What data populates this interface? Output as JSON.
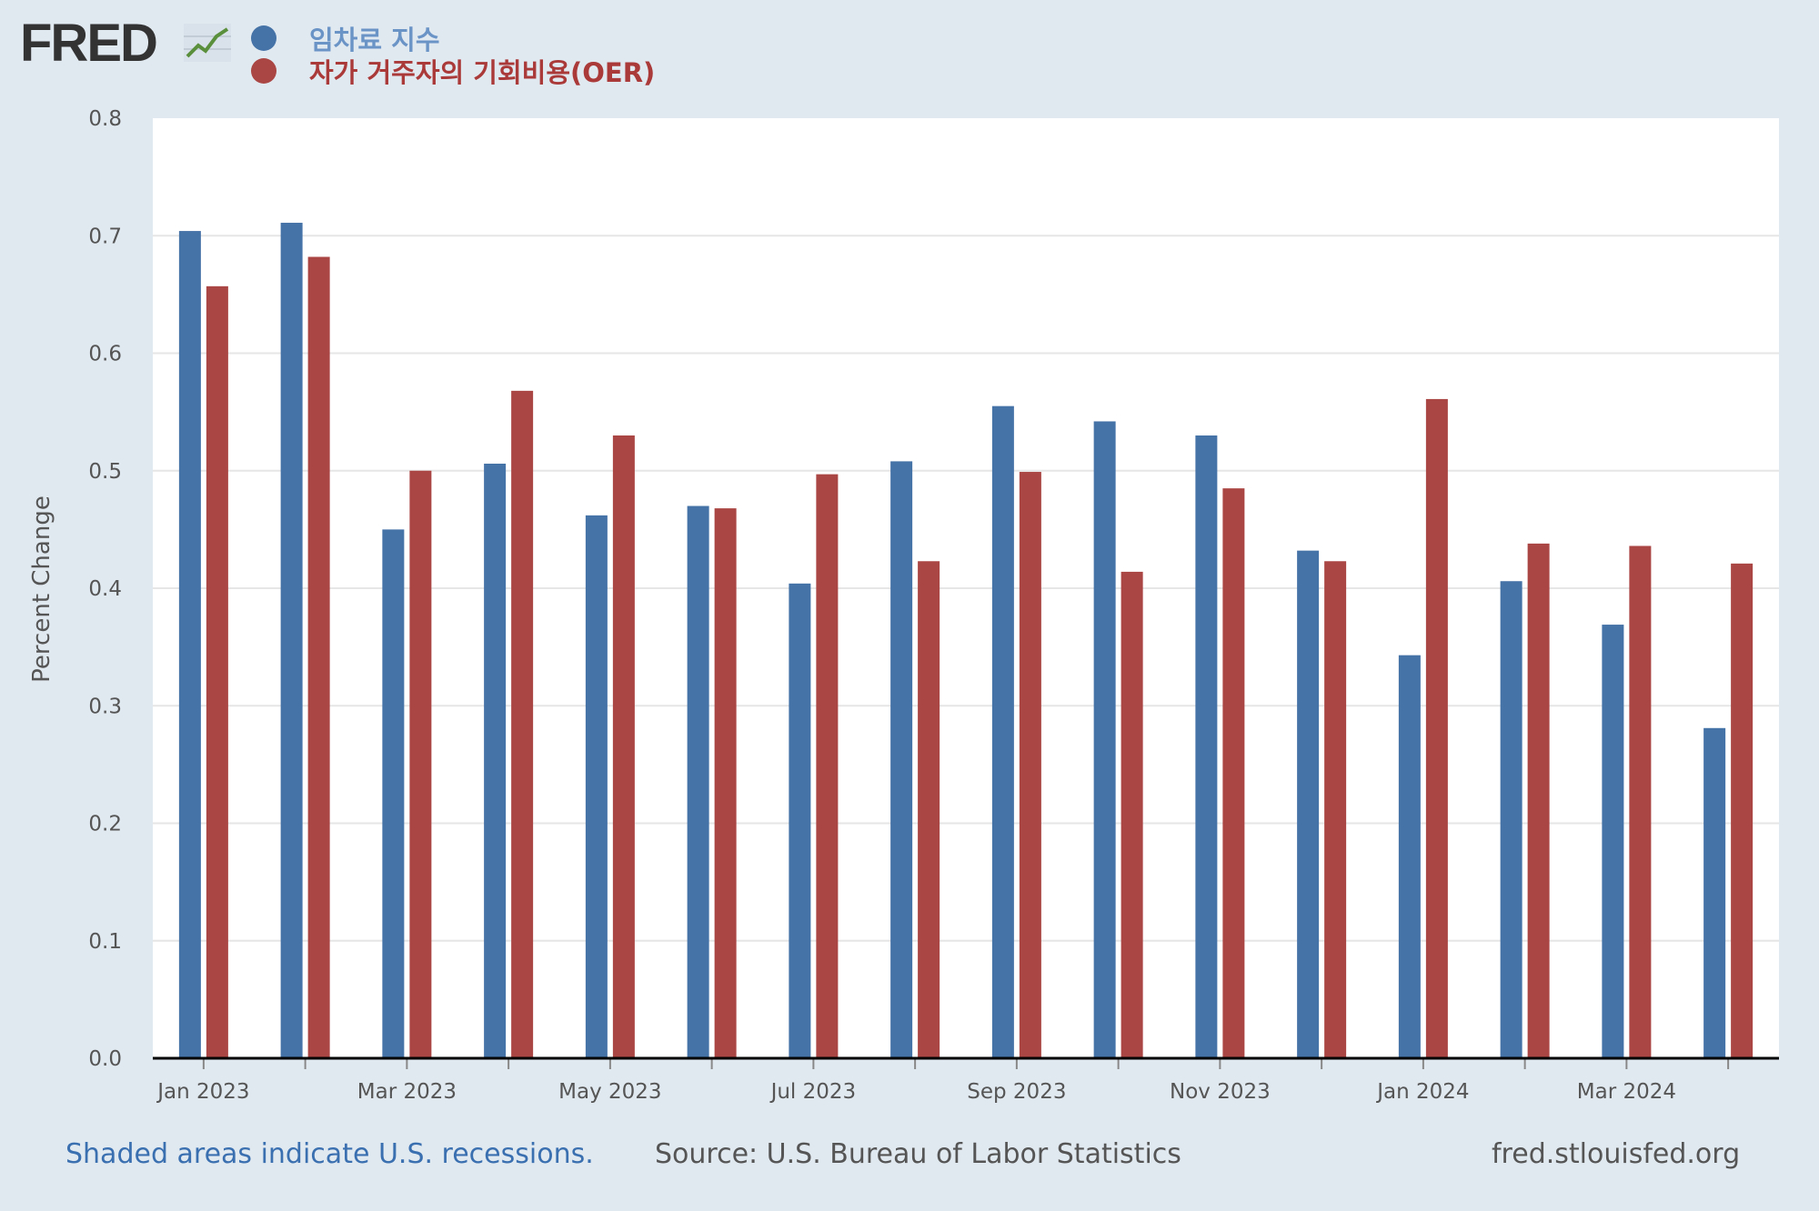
{
  "brand": {
    "name": "FRED"
  },
  "legend": [
    {
      "label": "임차료 지수",
      "color": "#4572a7"
    },
    {
      "label": "자가 거주자의 기회비용(OER)",
      "color": "#aa4643"
    }
  ],
  "footer": {
    "recession_note": "Shaded areas indicate U.S. recessions.",
    "source": "Source: U.S. Bureau of Labor Statistics",
    "url": "fred.stlouisfed.org"
  },
  "chart_data": {
    "type": "bar",
    "title": "",
    "xlabel": "",
    "ylabel": "Percent Change",
    "ylim": [
      0.0,
      0.8
    ],
    "yticks": [
      "0.0",
      "0.1",
      "0.2",
      "0.3",
      "0.4",
      "0.5",
      "0.6",
      "0.7",
      "0.8"
    ],
    "grid": true,
    "categories": [
      "Jan 2023",
      "Feb 2023",
      "Mar 2023",
      "Apr 2023",
      "May 2023",
      "Jun 2023",
      "Jul 2023",
      "Aug 2023",
      "Sep 2023",
      "Oct 2023",
      "Nov 2023",
      "Dec 2023",
      "Jan 2024",
      "Feb 2024",
      "Mar 2024",
      "Apr 2024"
    ],
    "xtick_labels": [
      "Jan 2023",
      "",
      "Mar 2023",
      "",
      "May 2023",
      "",
      "Jul 2023",
      "",
      "Sep 2023",
      "",
      "Nov 2023",
      "",
      "Jan 2024",
      "",
      "Mar 2024",
      ""
    ],
    "series": [
      {
        "name": "임차료 지수",
        "color": "#4572a7",
        "values": [
          0.704,
          0.711,
          0.45,
          0.506,
          0.462,
          0.47,
          0.404,
          0.508,
          0.555,
          0.542,
          0.53,
          0.432,
          0.343,
          0.406,
          0.369,
          0.281
        ]
      },
      {
        "name": "자가 거주자의 기회비용(OER)",
        "color": "#aa4643",
        "values": [
          0.657,
          0.682,
          0.5,
          0.568,
          0.53,
          0.468,
          0.497,
          0.423,
          0.499,
          0.414,
          0.485,
          0.423,
          0.561,
          0.438,
          0.436,
          0.421
        ]
      }
    ]
  }
}
